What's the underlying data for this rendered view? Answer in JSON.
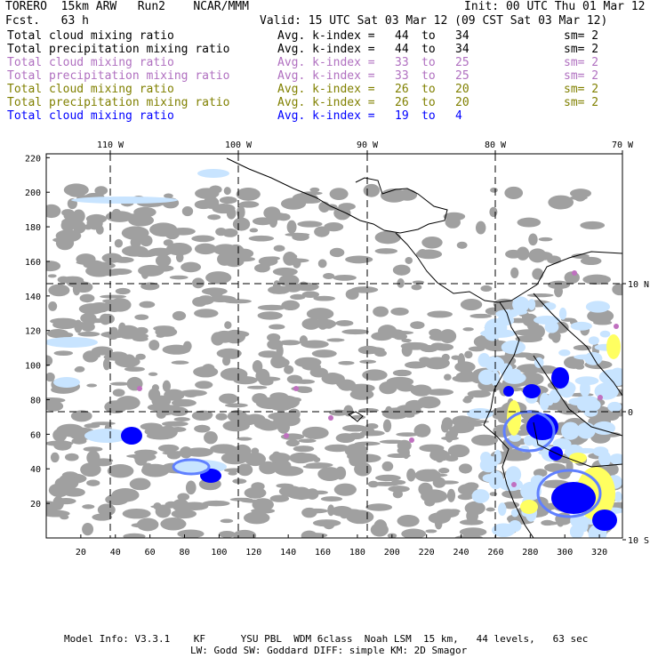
{
  "header": {
    "model": "TORERO  15km ARW   Run2    NCAR/MMM",
    "init": "Init: 00 UTC Thu 01 Mar 12",
    "fcst": "Fcst.   63 h",
    "valid": "Valid: 15 UTC Sat 03 Mar 12 (09 CST Sat 03 Mar 12)"
  },
  "legend": [
    {
      "field": "Total cloud mixing ratio",
      "kindex": "Avg. k-index = ",
      "k1": "44",
      "to": "to",
      "k2": "34",
      "sm": "sm= 2",
      "color": "#000000"
    },
    {
      "field": "Total precipitation mixing ratio",
      "kindex": "Avg. k-index = ",
      "k1": "44",
      "to": "to",
      "k2": "34",
      "sm": "sm= 2",
      "color": "#000000"
    },
    {
      "field": "Total cloud mixing ratio",
      "kindex": "Avg. k-index = ",
      "k1": "33",
      "to": "to",
      "k2": "25",
      "sm": "sm= 2",
      "color": "#b070c0"
    },
    {
      "field": "Total precipitation mixing ratio",
      "kindex": "Avg. k-index = ",
      "k1": "33",
      "to": "to",
      "k2": "25",
      "sm": "sm= 2",
      "color": "#b070c0"
    },
    {
      "field": "Total cloud mixing ratio",
      "kindex": "Avg. k-index = ",
      "k1": "26",
      "to": "to",
      "k2": "20",
      "sm": "sm= 2",
      "color": "#808000"
    },
    {
      "field": "Total precipitation mixing ratio",
      "kindex": "Avg. k-index = ",
      "k1": "26",
      "to": "to",
      "k2": "20",
      "sm": "sm= 2",
      "color": "#808000"
    },
    {
      "field": "Total cloud mixing ratio",
      "kindex": "Avg. k-index = ",
      "k1": "19",
      "to": "to",
      "k2": "4",
      "sm": "",
      "color": "#0000ff"
    }
  ],
  "map": {
    "top_labels": [
      "110 W",
      "100 W",
      "90 W",
      "80 W",
      "70 W"
    ],
    "right_labels": [
      "10 N",
      "0",
      "10 S"
    ],
    "y_ticks": [
      "20",
      "40",
      "60",
      "80",
      "100",
      "120",
      "140",
      "160",
      "180",
      "200",
      "220"
    ],
    "x_ticks": [
      "20",
      "40",
      "60",
      "80",
      "100",
      "120",
      "140",
      "160",
      "180",
      "200",
      "220",
      "240",
      "260",
      "280",
      "300",
      "320"
    ]
  },
  "footer": {
    "line1": "Model Info: V3.3.1    KF      YSU PBL  WDM 6class  Noah LSM  15 km,   44 levels,   63 sec",
    "line2": "LW: Godd SW: Goddard DIFF: simple KM: 2D Smagor"
  },
  "colors": {
    "gray": "#a0a0a0",
    "lightblue": "#c8e4ff",
    "midblue": "#6080ff",
    "blue": "#0000ff",
    "yellow": "#ffff60",
    "purple": "#c070c0"
  }
}
